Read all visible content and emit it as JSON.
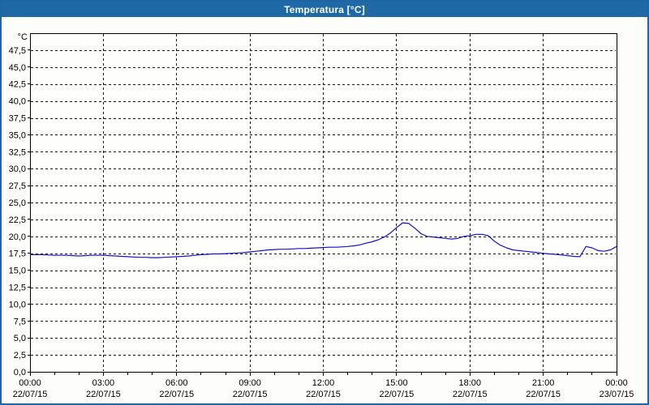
{
  "window": {
    "title": "Temperatura [°C]"
  },
  "colors": {
    "titlebar_bg": "#1F6AA6",
    "window_border": "#2166A4",
    "title_text": "#FFFFFF",
    "plot_bg": "#FEFEFC",
    "axis": "#000000",
    "grid": "#161616",
    "line": "#1414C8",
    "label_text": "#000000"
  },
  "chart_data": {
    "type": "line",
    "title": "Temperatura [°C]",
    "unit_label": "°C",
    "ylim": [
      0,
      50
    ],
    "ytick_step": 2.5,
    "ytick_labels": [
      "0,0",
      "2,5",
      "5,0",
      "7,5",
      "10,0",
      "12,5",
      "15,0",
      "17,5",
      "20,0",
      "22,5",
      "25,0",
      "27,5",
      "30,0",
      "32,5",
      "35,0",
      "37,5",
      "40,0",
      "42,5",
      "45,0",
      "47,5"
    ],
    "xlim_hours": [
      0,
      24
    ],
    "x_major_step_hours": 3,
    "x_minor_step_hours": 1,
    "xtick_labels": [
      {
        "time": "00:00",
        "date": "22/07/15"
      },
      {
        "time": "03:00",
        "date": "22/07/15"
      },
      {
        "time": "06:00",
        "date": "22/07/15"
      },
      {
        "time": "09:00",
        "date": "22/07/15"
      },
      {
        "time": "12:00",
        "date": "22/07/15"
      },
      {
        "time": "15:00",
        "date": "22/07/15"
      },
      {
        "time": "18:00",
        "date": "22/07/15"
      },
      {
        "time": "21:00",
        "date": "22/07/15"
      },
      {
        "time": "00:00",
        "date": "23/07/15"
      }
    ],
    "grid": "dashed",
    "legend": "none",
    "series": [
      {
        "name": "Temperatura",
        "color": "#1414C8",
        "x_start_hours": 0,
        "x_step_hours": 0.25,
        "values": [
          17.3,
          17.3,
          17.3,
          17.25,
          17.2,
          17.2,
          17.2,
          17.15,
          17.1,
          17.15,
          17.2,
          17.2,
          17.2,
          17.15,
          17.1,
          17.05,
          17.0,
          16.95,
          16.9,
          16.9,
          16.85,
          16.85,
          16.9,
          16.95,
          17.0,
          17.05,
          17.1,
          17.2,
          17.3,
          17.35,
          17.4,
          17.4,
          17.45,
          17.5,
          17.55,
          17.6,
          17.7,
          17.8,
          17.9,
          18.0,
          18.05,
          18.1,
          18.1,
          18.15,
          18.2,
          18.2,
          18.25,
          18.3,
          18.35,
          18.4,
          18.4,
          18.45,
          18.5,
          18.6,
          18.75,
          19.0,
          19.2,
          19.5,
          19.9,
          20.5,
          21.3,
          22.0,
          21.9,
          21.2,
          20.4,
          20.0,
          19.9,
          19.8,
          19.7,
          19.6,
          19.7,
          20.0,
          20.1,
          20.3,
          20.3,
          20.1,
          19.3,
          18.7,
          18.3,
          18.0,
          17.9,
          17.8,
          17.7,
          17.6,
          17.5,
          17.4,
          17.35,
          17.25,
          17.15,
          17.05,
          17.0,
          18.5,
          18.3,
          17.9,
          17.8,
          18.0,
          18.5
        ]
      }
    ]
  }
}
